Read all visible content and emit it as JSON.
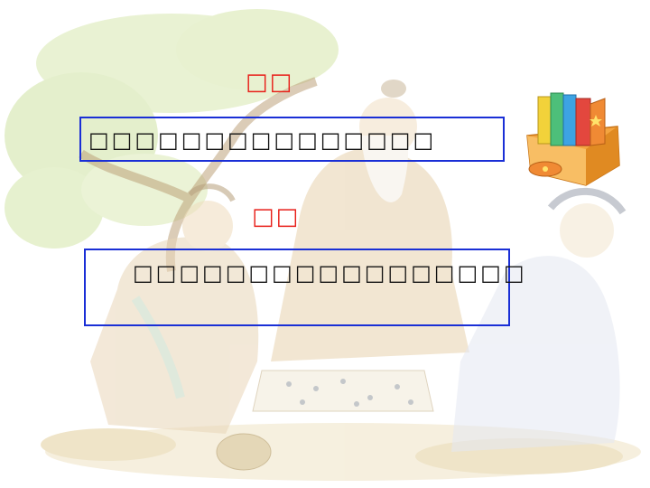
{
  "slide": {
    "heading_1": "□□",
    "box_1_text": "□□□□□□□□□□□□□□□",
    "heading_2": "□□",
    "box_2_text": "□□□□□□□□□□□□□□□□□"
  },
  "colors": {
    "heading": "#e8201a",
    "box_border": "#1a2fd6"
  },
  "icons": {
    "background": "faded-painting-scholars-playing-go",
    "book_box": "books-in-orange-box-icon"
  }
}
